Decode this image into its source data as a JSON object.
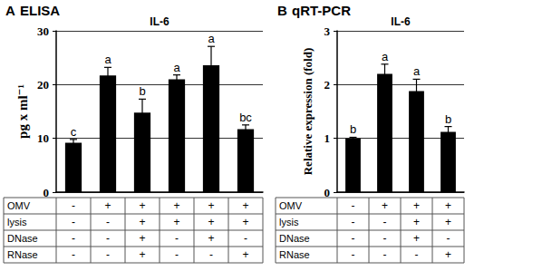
{
  "chart_data": [
    {
      "type": "bar",
      "panel": "A",
      "heading": "ELISA",
      "title": "IL-6",
      "y_label": "pg x ml⁻¹",
      "values": [
        9.2,
        21.7,
        14.8,
        21.0,
        23.6,
        11.7
      ],
      "errors": [
        0.6,
        1.5,
        2.5,
        0.8,
        3.5,
        0.8
      ],
      "letters": [
        "c",
        "a",
        "b",
        "a",
        "a",
        "bc"
      ],
      "color": "#000000",
      "ylim": [
        0,
        30
      ],
      "yticks": [
        0,
        10,
        20,
        30
      ],
      "grid": true,
      "table": [
        {
          "label": "OMV",
          "cells": [
            "-",
            "+",
            "+",
            "+",
            "+",
            "+"
          ]
        },
        {
          "label": "lysis",
          "cells": [
            "-",
            "-",
            "+",
            "+",
            "+",
            "+"
          ]
        },
        {
          "label": "DNase",
          "cells": [
            "-",
            "-",
            "+",
            "-",
            "+",
            "-"
          ]
        },
        {
          "label": "RNase",
          "cells": [
            "-",
            "-",
            "+",
            "-",
            "-",
            "+"
          ]
        }
      ]
    },
    {
      "type": "bar",
      "panel": "B",
      "heading": "qRT-PCR",
      "title": "IL-6",
      "y_label": "Relative expression (fold)",
      "values": [
        1.0,
        2.2,
        1.88,
        1.12
      ],
      "errors": [
        0.02,
        0.18,
        0.22,
        0.1
      ],
      "letters": [
        "b",
        "a",
        "a",
        "b"
      ],
      "color": "#000000",
      "ylim": [
        0,
        3
      ],
      "yticks": [
        0,
        1,
        2,
        3
      ],
      "grid": true,
      "table": [
        {
          "label": "OMV",
          "cells": [
            "-",
            "+",
            "+",
            "+"
          ]
        },
        {
          "label": "lysis",
          "cells": [
            "-",
            "-",
            "+",
            "+"
          ]
        },
        {
          "label": "DNase",
          "cells": [
            "-",
            "-",
            "+",
            "-"
          ]
        },
        {
          "label": "RNase",
          "cells": [
            "-",
            "-",
            "-",
            "+"
          ]
        }
      ]
    }
  ]
}
